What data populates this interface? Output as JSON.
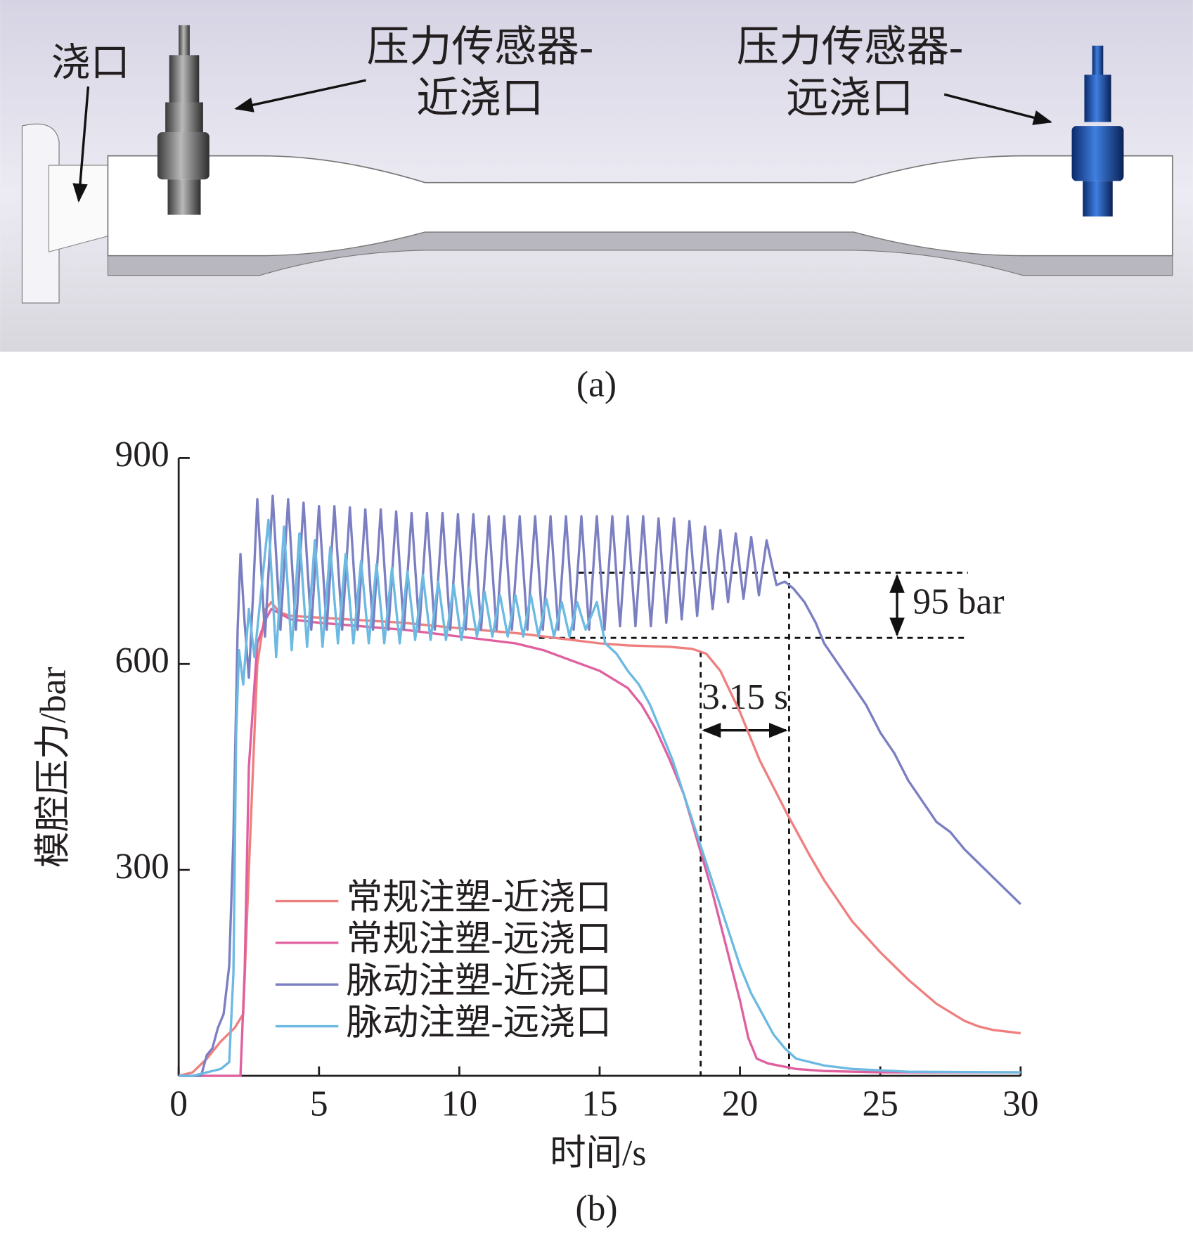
{
  "figure_a": {
    "gate_label": "浇口",
    "near_sensor_label": [
      "压力传感器-",
      "近浇口"
    ],
    "far_sensor_label": [
      "压力传感器-",
      "远浇口"
    ],
    "caption": "(a)"
  },
  "chart_data": {
    "type": "line",
    "caption": "(b)",
    "x_label": "时间/s",
    "y_label": "模腔压力/bar",
    "xlim": [
      0,
      30
    ],
    "ylim": [
      0,
      900
    ],
    "xticks": [
      0,
      5,
      10,
      15,
      20,
      25,
      30
    ],
    "yticks": [
      300,
      600,
      900
    ],
    "series": [
      {
        "name": "常规注塑-近浇口",
        "color": "#ef7f7f",
        "x": [
          0,
          0.5,
          1.0,
          1.5,
          2.0,
          2.3,
          2.5,
          2.8,
          3.1,
          3.3,
          3.6,
          4.0,
          6.0,
          8.0,
          10.0,
          12.0,
          14.0,
          15.0,
          16.0,
          17.5,
          18.3,
          18.8,
          19.3,
          20.0,
          20.7,
          21.7,
          22.5,
          23.0,
          24.0,
          25.0,
          26.0,
          27.0,
          28.0,
          28.5,
          29.0,
          30.0
        ],
        "values": [
          0,
          5,
          25,
          50,
          70,
          90,
          300,
          600,
          680,
          690,
          675,
          670,
          665,
          660,
          652,
          645,
          635,
          630,
          627,
          625,
          622,
          615,
          590,
          530,
          460,
          380,
          320,
          285,
          225,
          180,
          140,
          105,
          80,
          72,
          67,
          62
        ]
      },
      {
        "name": "常规注塑-远浇口",
        "color": "#e0609f",
        "x": [
          0,
          2.2,
          2.35,
          2.5,
          2.8,
          3.1,
          3.3,
          4.0,
          5.0,
          8.0,
          10.0,
          12.0,
          13.0,
          14.0,
          15.0,
          16.0,
          16.5,
          17.0,
          17.5,
          18.0,
          18.5,
          19.0,
          19.5,
          20.0,
          20.3,
          20.6,
          21.0,
          22.0,
          23.0,
          25.0,
          30.0
        ],
        "values": [
          0,
          0,
          150,
          450,
          630,
          665,
          680,
          665,
          660,
          650,
          640,
          630,
          620,
          605,
          590,
          565,
          540,
          505,
          460,
          410,
          340,
          270,
          190,
          110,
          55,
          25,
          18,
          10,
          7,
          5,
          5
        ]
      },
      {
        "name": "脉动注塑-近浇口",
        "color": "#7b7fc2",
        "x": [
          0,
          0.8,
          1.0,
          1.2,
          1.4,
          1.6,
          1.8,
          1.95,
          2.1,
          2.2,
          2.35,
          2.5,
          2.65,
          2.8,
          3.075,
          3.35,
          3.625,
          3.9,
          4.175,
          4.45,
          4.725,
          5.0,
          5.275,
          5.55,
          5.825,
          6.1,
          6.375,
          6.65,
          6.925,
          7.2,
          7.475,
          7.75,
          8.025,
          8.3,
          8.575,
          8.85,
          9.125,
          9.4,
          9.675,
          9.95,
          10.225,
          10.5,
          10.775,
          11.05,
          11.325,
          11.6,
          11.875,
          12.15,
          12.425,
          12.7,
          12.975,
          13.25,
          13.525,
          13.8,
          14.075,
          14.35,
          14.625,
          14.9,
          15.175,
          15.45,
          15.725,
          16.0,
          16.275,
          16.55,
          16.825,
          17.1,
          17.375,
          17.65,
          17.925,
          18.2,
          18.475,
          18.75,
          19.025,
          19.3,
          19.575,
          19.85,
          20.125,
          20.4,
          20.675,
          20.95,
          21.3,
          21.6,
          21.9,
          22.3,
          22.7,
          23.0,
          23.5,
          24.0,
          24.5,
          25.0,
          25.5,
          26.0,
          26.5,
          27.0,
          27.5,
          28.0,
          28.5,
          29.0,
          29.5,
          30.0
        ],
        "values": [
          0,
          0,
          30,
          40,
          70,
          90,
          160,
          350,
          650,
          760,
          660,
          580,
          700,
          840,
          640,
          845,
          650,
          840,
          650,
          835,
          650,
          830,
          650,
          830,
          650,
          828,
          650,
          825,
          650,
          825,
          650,
          822,
          650,
          820,
          650,
          820,
          650,
          820,
          650,
          818,
          650,
          818,
          650,
          815,
          650,
          815,
          650,
          815,
          650,
          815,
          650,
          815,
          650,
          815,
          650,
          815,
          650,
          815,
          650,
          815,
          655,
          815,
          655,
          815,
          655,
          812,
          660,
          812,
          665,
          808,
          670,
          800,
          680,
          795,
          690,
          790,
          695,
          785,
          700,
          780,
          715,
          720,
          710,
          690,
          660,
          630,
          600,
          570,
          540,
          500,
          470,
          430,
          400,
          370,
          355,
          330,
          310,
          290,
          270,
          250
        ]
      },
      {
        "name": "脉动注塑-远浇口",
        "color": "#6cb9e2",
        "x": [
          0,
          0.5,
          1.0,
          1.5,
          1.8,
          1.95,
          2.05,
          2.15,
          2.3,
          2.5,
          2.7,
          3.2,
          3.475,
          3.75,
          4.025,
          4.3,
          4.575,
          4.85,
          5.125,
          5.4,
          5.675,
          5.95,
          6.225,
          6.5,
          6.775,
          7.05,
          7.325,
          7.6,
          7.875,
          8.15,
          8.425,
          8.7,
          8.975,
          9.25,
          9.525,
          9.8,
          10.075,
          10.35,
          10.625,
          10.9,
          11.175,
          11.45,
          11.725,
          12.0,
          12.275,
          12.55,
          12.825,
          13.1,
          13.375,
          13.65,
          13.925,
          14.2,
          14.5,
          14.9,
          15.2,
          15.6,
          16.0,
          16.4,
          16.8,
          17.2,
          17.6,
          18.0,
          18.4,
          18.8,
          19.2,
          19.6,
          20.0,
          20.4,
          20.8,
          21.2,
          21.6,
          22.0,
          23.0,
          24.0,
          26.0,
          30.0
        ],
        "values": [
          0,
          0,
          5,
          10,
          20,
          150,
          500,
          620,
          570,
          680,
          610,
          810,
          610,
          800,
          620,
          790,
          625,
          780,
          625,
          770,
          630,
          760,
          630,
          750,
          630,
          745,
          630,
          740,
          630,
          735,
          635,
          730,
          635,
          720,
          635,
          715,
          635,
          710,
          640,
          705,
          640,
          700,
          640,
          700,
          640,
          700,
          640,
          695,
          640,
          690,
          640,
          690,
          650,
          690,
          630,
          615,
          590,
          570,
          540,
          500,
          460,
          410,
          360,
          310,
          260,
          210,
          160,
          120,
          90,
          60,
          40,
          25,
          15,
          10,
          6,
          5
        ]
      }
    ],
    "annotations": [
      {
        "text": "95 bar",
        "y": [
          638,
          733
        ]
      },
      {
        "text": "3.15 s",
        "x": [
          18.6,
          21.75
        ]
      }
    ]
  }
}
